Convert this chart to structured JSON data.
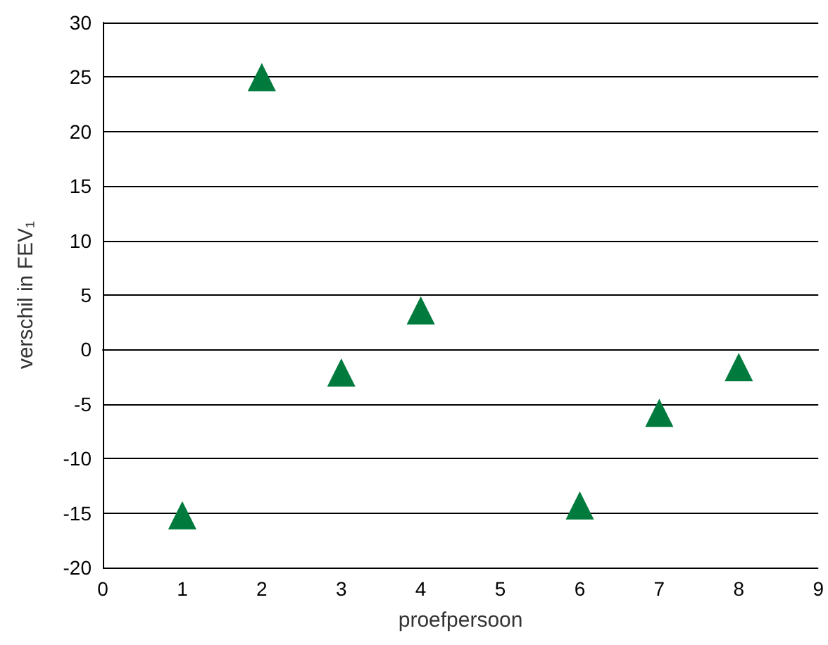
{
  "chart_data": {
    "type": "scatter",
    "xlabel": "proefpersoon",
    "ylabel": "verschil in FEV₁",
    "x": [
      1,
      2,
      3,
      4,
      6,
      7,
      8
    ],
    "series": [
      {
        "color": "#007a3d",
        "values": [
          -15.2,
          25,
          -2.1,
          3.6,
          -14.3,
          -5.8,
          -1.6
        ]
      }
    ],
    "xlim": [
      0,
      9
    ],
    "xticks": [
      0,
      1,
      2,
      3,
      4,
      5,
      6,
      7,
      8,
      9
    ],
    "ylim": [
      -20,
      30
    ],
    "yticks": [
      -20,
      -15,
      -10,
      -5,
      0,
      5,
      10,
      15,
      20,
      25,
      30
    ],
    "grid": "y",
    "marker": "triangle"
  }
}
